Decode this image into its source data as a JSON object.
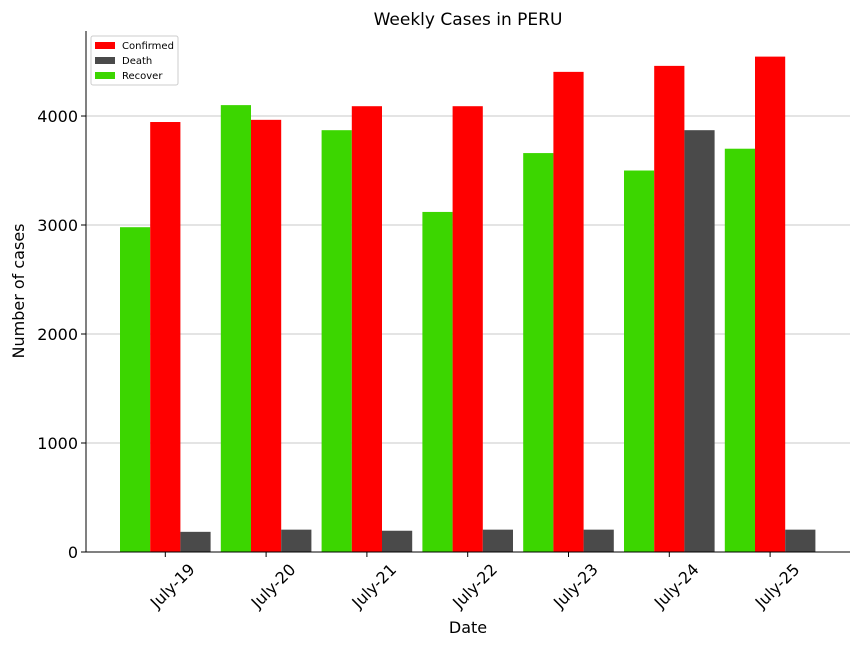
{
  "chart_data": {
    "type": "bar",
    "title": "Weekly Cases in PERU",
    "xlabel": "Date",
    "ylabel": "Number of cases",
    "categories": [
      "July-19",
      "July-20",
      "July-21",
      "July-22",
      "July-23",
      "July-24",
      "July-25"
    ],
    "series": [
      {
        "name": "Recover",
        "color": "#3cd600",
        "values": [
          2980,
          4100,
          3870,
          3120,
          3660,
          3500,
          3700
        ]
      },
      {
        "name": "Confirmed",
        "color": "#ff0000",
        "values": [
          3945,
          3965,
          4090,
          4090,
          4405,
          4460,
          4545
        ]
      },
      {
        "name": "Death",
        "color": "#4a4a4a",
        "values": [
          185,
          205,
          195,
          205,
          205,
          3870,
          205
        ]
      }
    ],
    "legend_order": [
      "Confirmed",
      "Death",
      "Recover"
    ],
    "ylim": [
      0,
      4780
    ],
    "yticks": [
      0,
      1000,
      2000,
      3000,
      4000
    ],
    "grid": "horizontal",
    "legend_position": "top-left"
  }
}
